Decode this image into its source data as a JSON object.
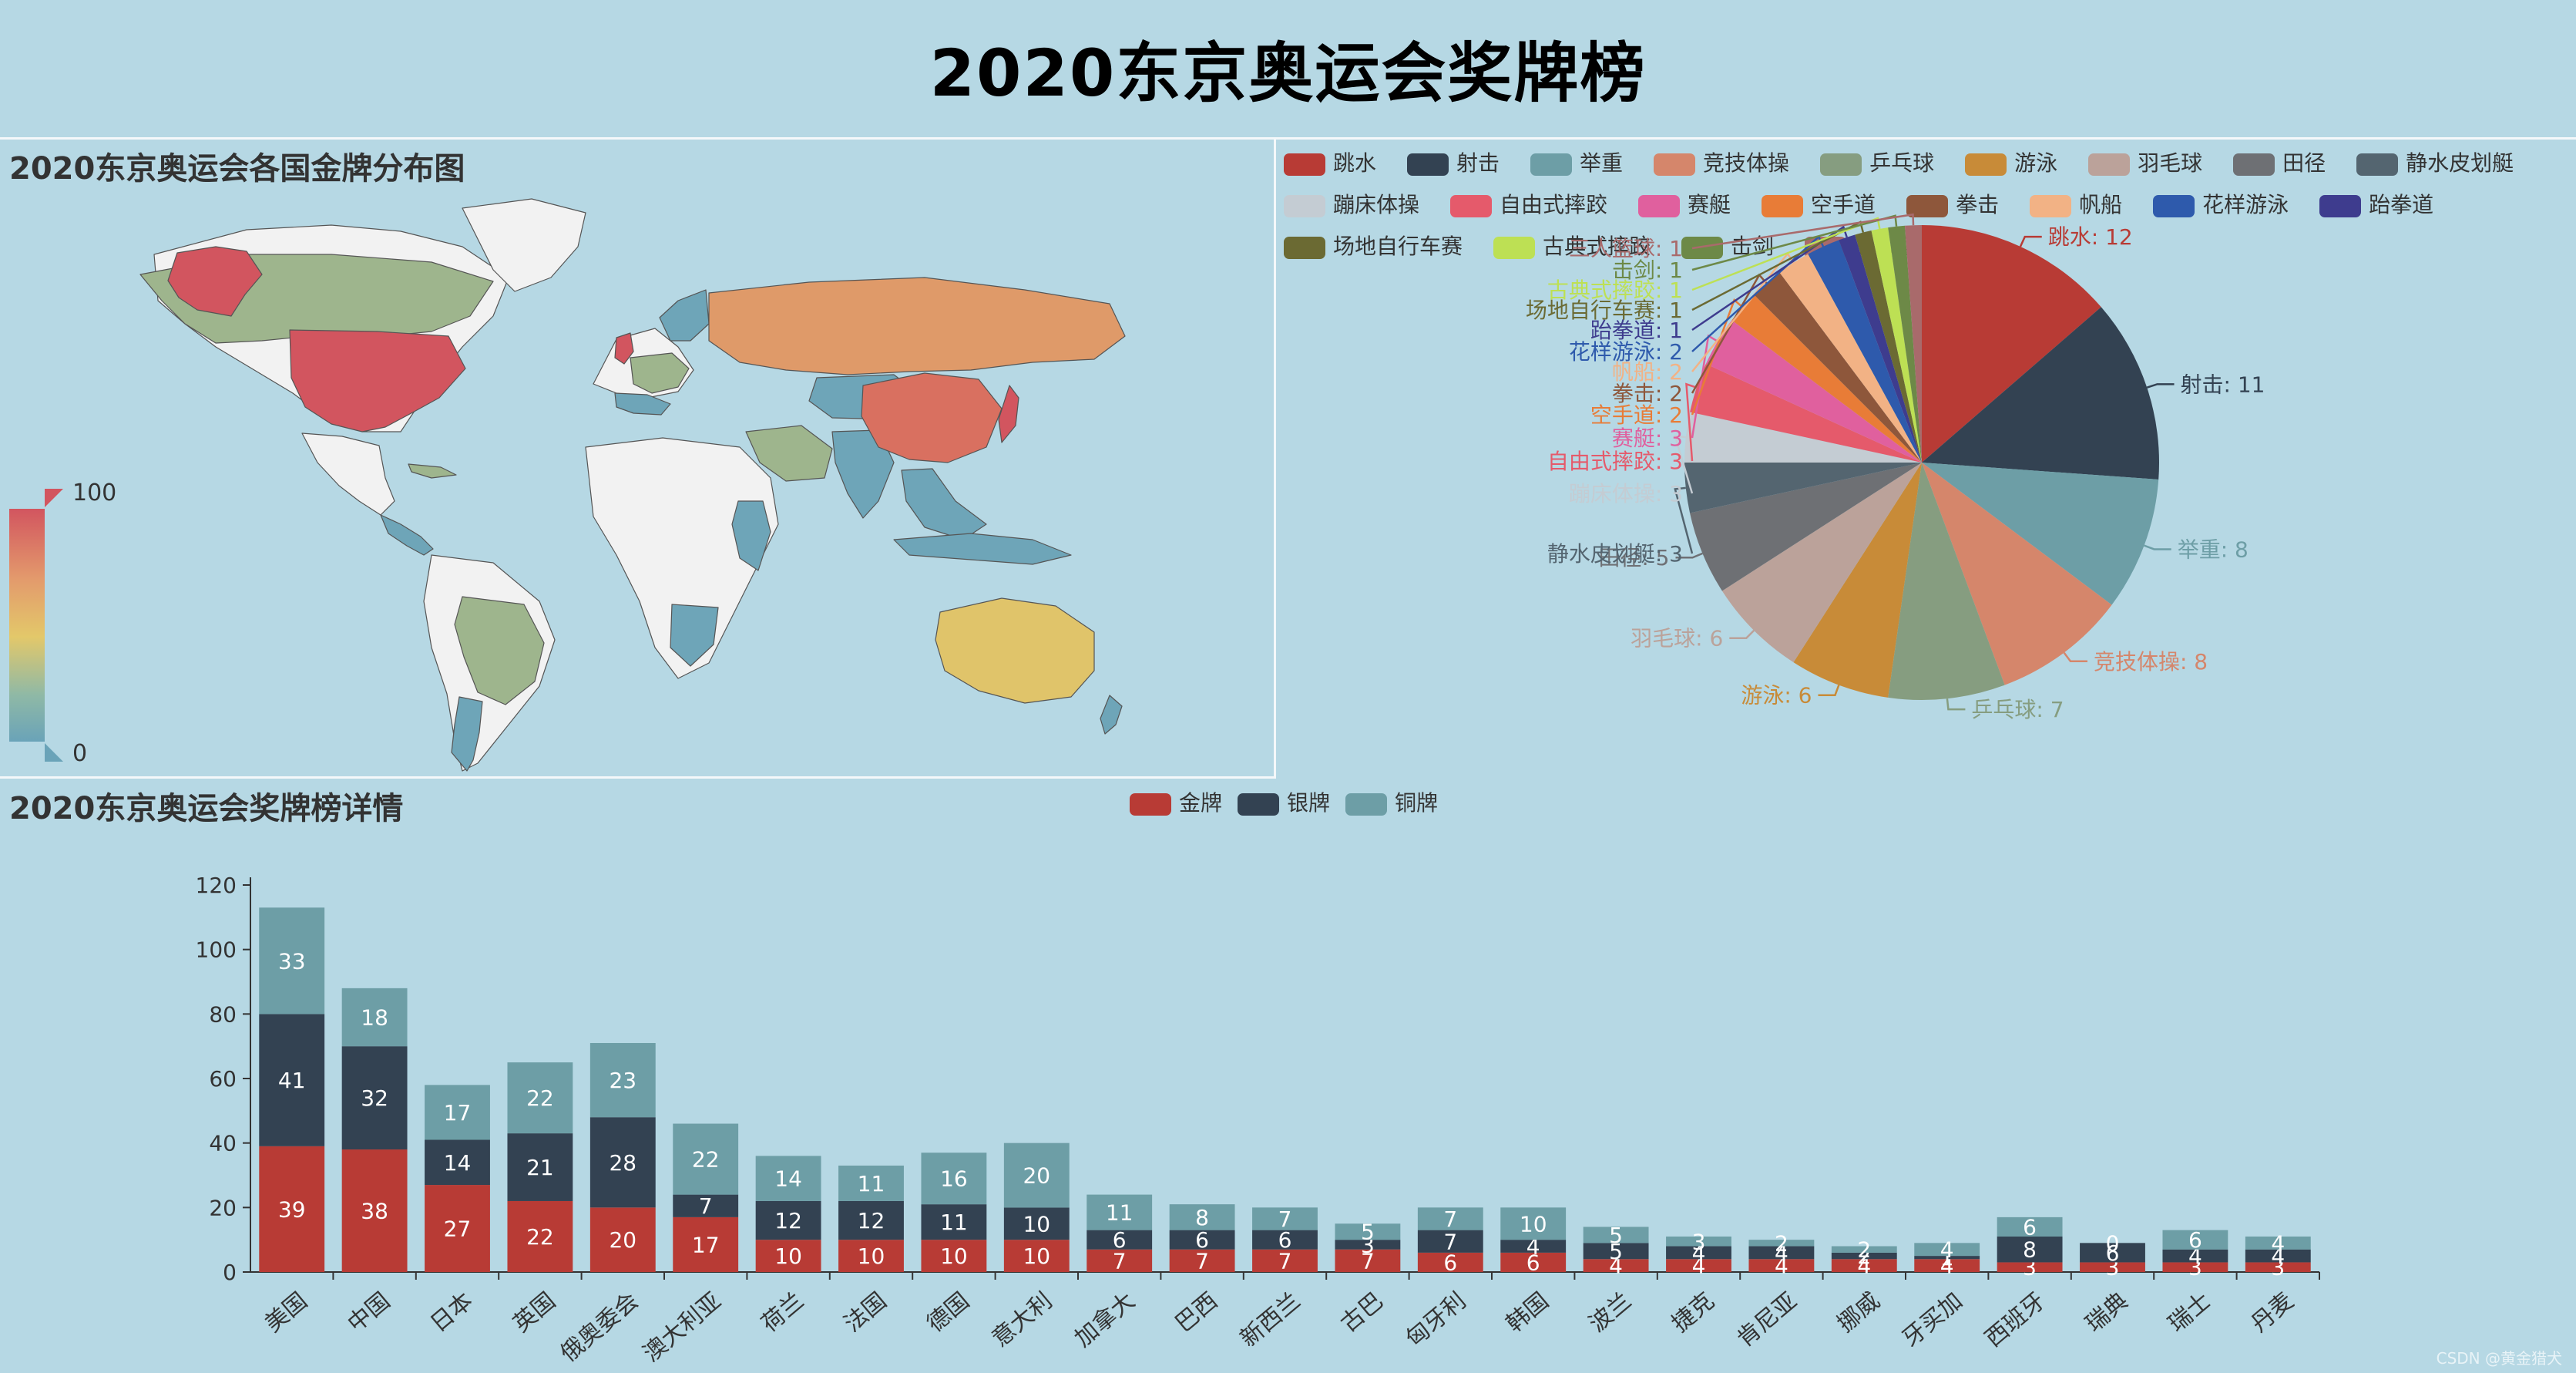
{
  "title": "2020东京奥运会奖牌榜",
  "map": {
    "title": "2020东京奥运会各国金牌分布图",
    "visual_map": {
      "max_label": "100",
      "min_label": "0",
      "colors": [
        "#6aa3b8",
        "#8fb9a6",
        "#e3c86a",
        "#e39a6c",
        "#d2555f"
      ]
    },
    "fills": {
      "high": "#d2555f",
      "china": "#d97060",
      "russia": "#df9a69",
      "australia": "#e0c46a",
      "green": "#9eb58d",
      "blue": "#6ea5b8",
      "none": "#f2f2f2",
      "ocean": "#b6d8e4"
    }
  },
  "credit": "CSDN @黄金猎犬",
  "chart_data": [
    {
      "type": "pie",
      "title": "",
      "legend_position": "top-right",
      "slices": [
        {
          "name": "跳水",
          "value": 12,
          "color": "#b83b35"
        },
        {
          "name": "射击",
          "value": 11,
          "color": "#334252"
        },
        {
          "name": "举重",
          "value": 8,
          "color": "#6d9ea6"
        },
        {
          "name": "竞技体操",
          "value": 8,
          "color": "#d5866b"
        },
        {
          "name": "乒乓球",
          "value": 7,
          "color": "#869d80"
        },
        {
          "name": "游泳",
          "value": 6,
          "color": "#c88b38"
        },
        {
          "name": "羽毛球",
          "value": 6,
          "color": "#bba29a"
        },
        {
          "name": "田径",
          "value": 5,
          "color": "#6e7074"
        },
        {
          "name": "静水皮划艇",
          "value": 3,
          "color": "#546570"
        },
        {
          "name": "蹦床体操",
          "value": 3,
          "color": "#c4ccd3"
        },
        {
          "name": "自由式摔跤",
          "value": 3,
          "color": "#e55a6b"
        },
        {
          "name": "赛艇",
          "value": 3,
          "color": "#e0609e"
        },
        {
          "name": "空手道",
          "value": 2,
          "color": "#e87c37"
        },
        {
          "name": "拳击",
          "value": 2,
          "color": "#8e573b"
        },
        {
          "name": "帆船",
          "value": 2,
          "color": "#f2b285"
        },
        {
          "name": "花样游泳",
          "value": 2,
          "color": "#2e5aac"
        },
        {
          "name": "跆拳道",
          "value": 1,
          "color": "#3e3c8e"
        },
        {
          "name": "场地自行车赛",
          "value": 1,
          "color": "#6b6a33"
        },
        {
          "name": "古典式摔跤",
          "value": 1,
          "color": "#bde054"
        },
        {
          "name": "击剑",
          "value": 1,
          "color": "#6d8947"
        },
        {
          "name": "三人篮球",
          "value": 1,
          "color": "#a96a6b"
        }
      ]
    },
    {
      "type": "bar",
      "stacked": true,
      "title": "2020东京奥运会奖牌榜详情",
      "legend_position": "top-center",
      "categories": [
        "美国",
        "中国",
        "日本",
        "英国",
        "俄奥委会",
        "澳大利亚",
        "荷兰",
        "法国",
        "德国",
        "意大利",
        "加拿大",
        "巴西",
        "新西兰",
        "古巴",
        "匈牙利",
        "韩国",
        "波兰",
        "捷克",
        "肯尼亚",
        "挪威",
        "牙买加",
        "西班牙",
        "瑞典",
        "瑞士",
        "丹麦"
      ],
      "series": [
        {
          "name": "金牌",
          "color": "#b83b35",
          "values": [
            39,
            38,
            27,
            22,
            20,
            17,
            10,
            10,
            10,
            10,
            7,
            7,
            7,
            7,
            6,
            6,
            4,
            4,
            4,
            4,
            4,
            3,
            3,
            3,
            3
          ]
        },
        {
          "name": "银牌",
          "color": "#334252",
          "values": [
            41,
            32,
            14,
            21,
            28,
            7,
            12,
            12,
            11,
            10,
            6,
            6,
            6,
            3,
            7,
            4,
            5,
            4,
            4,
            2,
            1,
            8,
            6,
            4,
            4
          ]
        },
        {
          "name": "铜牌",
          "color": "#6d9ea6",
          "values": [
            33,
            18,
            17,
            22,
            23,
            22,
            14,
            11,
            16,
            20,
            11,
            8,
            7,
            5,
            7,
            10,
            5,
            3,
            2,
            2,
            4,
            6,
            0,
            6,
            4
          ]
        }
      ],
      "ylim": [
        0,
        120
      ],
      "yticks": [
        0,
        20,
        40,
        60,
        80,
        100,
        120
      ]
    }
  ]
}
